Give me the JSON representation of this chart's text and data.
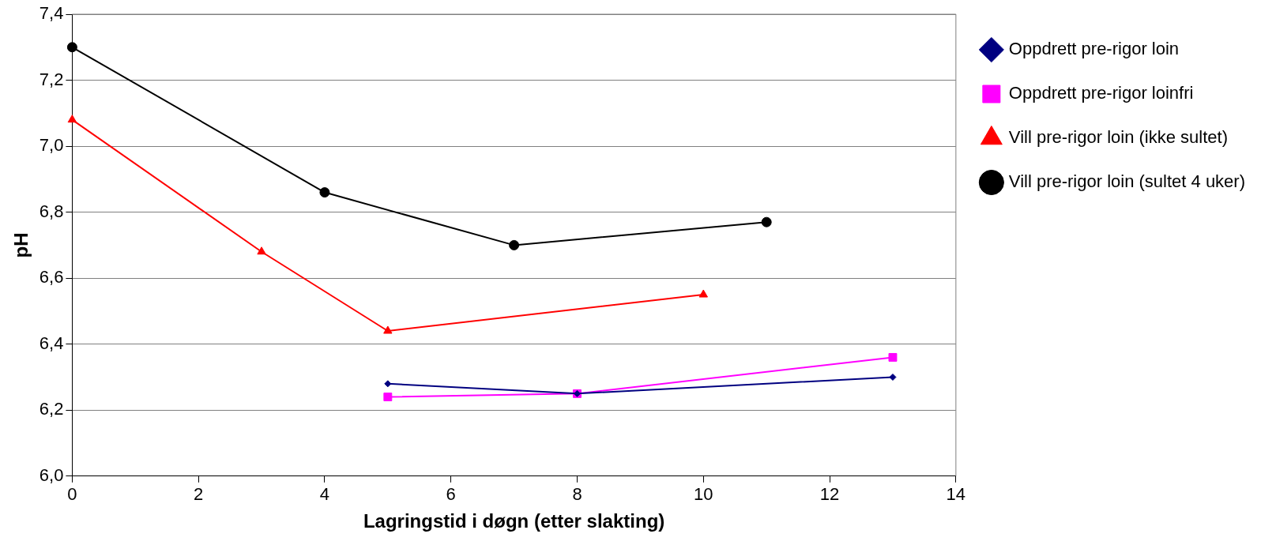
{
  "chart_data": {
    "type": "line",
    "xlabel": "Lagringstid i døgn (etter slakting)",
    "ylabel": "pH",
    "xlim": [
      0,
      14
    ],
    "xticks": [
      0,
      2,
      4,
      6,
      8,
      10,
      12,
      14
    ],
    "ylim": [
      6.0,
      7.4
    ],
    "yticks": [
      {
        "value": 6.0,
        "label": "6,0"
      },
      {
        "value": 6.2,
        "label": "6,2"
      },
      {
        "value": 6.4,
        "label": "6,4"
      },
      {
        "value": 6.6,
        "label": "6,6"
      },
      {
        "value": 6.8,
        "label": "6,8"
      },
      {
        "value": 7.0,
        "label": "7,0"
      },
      {
        "value": 7.2,
        "label": "7,2"
      },
      {
        "value": 7.4,
        "label": "7,4"
      }
    ],
    "grid": "y",
    "legend": "right",
    "line_style": "solid",
    "series": [
      {
        "name": "Oppdrett pre-rigor loin",
        "color": "#000080",
        "marker": "diamond",
        "x": [
          5,
          8,
          13
        ],
        "values": [
          6.28,
          6.25,
          6.3
        ]
      },
      {
        "name": "Oppdrett pre-rigor loinfri",
        "color": "#ff00ff",
        "marker": "square",
        "x": [
          5,
          8,
          13
        ],
        "values": [
          6.24,
          6.25,
          6.36
        ]
      },
      {
        "name": "Vill pre-rigor loin (ikke sultet)",
        "color": "#ff0000",
        "marker": "triangle",
        "x": [
          0,
          3,
          5,
          10
        ],
        "values": [
          7.08,
          6.68,
          6.44,
          6.55
        ]
      },
      {
        "name": "Vill pre-rigor loin (sultet 4 uker)",
        "color": "#000000",
        "marker": "circle",
        "x": [
          0,
          4,
          7,
          11
        ],
        "values": [
          7.3,
          6.86,
          6.7,
          6.77
        ]
      }
    ]
  }
}
